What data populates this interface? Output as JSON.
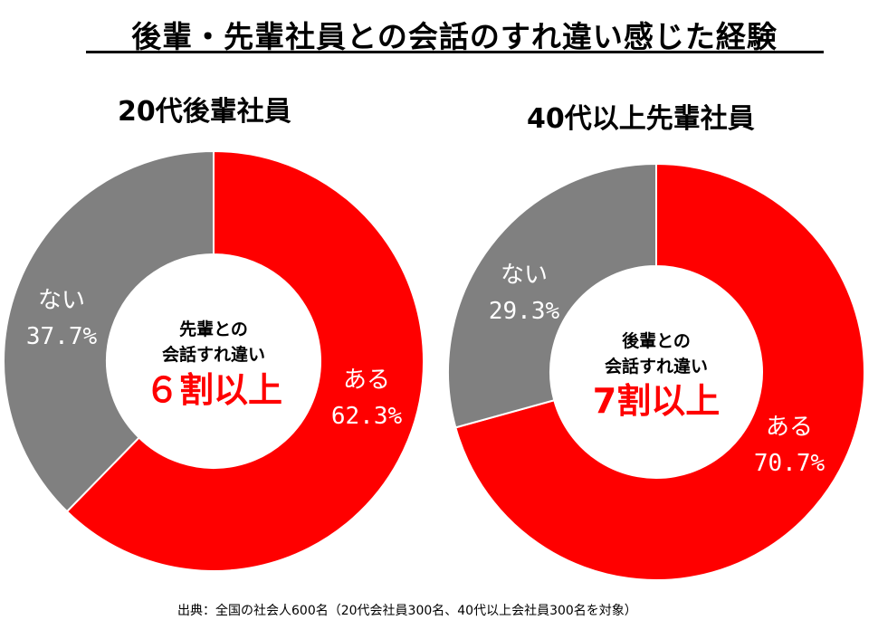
{
  "title": "後輩・先輩社員との会話のすれ違い感じた経験",
  "source": "出典：全国の社会人600名（20代会社員300名、40代以上会社員300名を対象）",
  "colors": {
    "aru": "#ff0000",
    "nai": "#808080",
    "highlight": "#ff0000"
  },
  "chart_data": [
    {
      "type": "pie",
      "title": "20代後輩社員",
      "slices": [
        {
          "label": "ある",
          "value": 62.3,
          "display": "62.3%",
          "color": "#ff0000"
        },
        {
          "label": "ない",
          "value": 37.7,
          "display": "37.7%",
          "color": "#808080"
        }
      ],
      "center_text": [
        "先輩との",
        "会話すれ違い"
      ],
      "center_highlight": "６割以上"
    },
    {
      "type": "pie",
      "title": "40代以上先輩社員",
      "slices": [
        {
          "label": "ある",
          "value": 70.7,
          "display": "70.7%",
          "color": "#ff0000"
        },
        {
          "label": "ない",
          "value": 29.3,
          "display": "29.3%",
          "color": "#808080"
        }
      ],
      "center_text": [
        "後輩との",
        "会話すれ違い"
      ],
      "center_highlight": "7割以上"
    }
  ]
}
